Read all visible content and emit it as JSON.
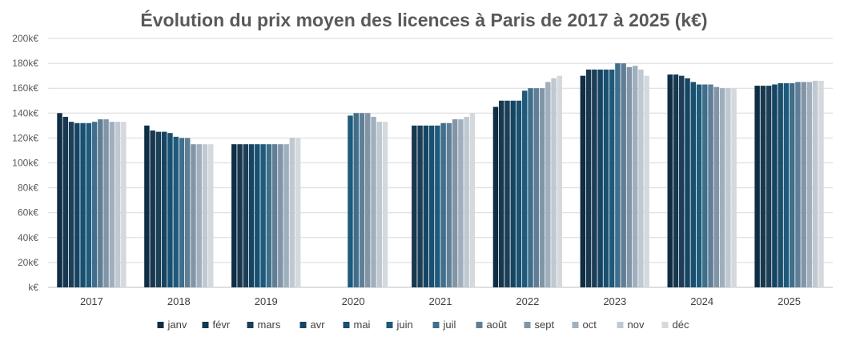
{
  "chart_data": {
    "type": "bar",
    "title": "Évolution du prix moyen des licences à Paris de 2017 à 2025 (k€)",
    "xlabel": "",
    "ylabel": "",
    "ylim": [
      0,
      200
    ],
    "y_ticks": [
      "k€",
      "20k€",
      "40k€",
      "60k€",
      "80k€",
      "100k€",
      "120k€",
      "140k€",
      "160k€",
      "180k€",
      "200k€"
    ],
    "grid": true,
    "legend": "bottom",
    "categories": [
      "2017",
      "2018",
      "2019",
      "2020",
      "2021",
      "2022",
      "2023",
      "2024",
      "2025"
    ],
    "series": [
      {
        "name": "janv",
        "color": "#0f2d44",
        "values": [
          140,
          130,
          115,
          null,
          null,
          145,
          170,
          171,
          162
        ]
      },
      {
        "name": "févr",
        "color": "#17384f",
        "values": [
          137,
          126,
          115,
          null,
          130,
          150,
          175,
          171,
          162
        ]
      },
      {
        "name": "mars",
        "color": "#1c3e56",
        "values": [
          133,
          125,
          115,
          null,
          130,
          150,
          175,
          170,
          162
        ]
      },
      {
        "name": "avr",
        "color": "#164563",
        "values": [
          132,
          125,
          115,
          null,
          130,
          150,
          175,
          168,
          163
        ]
      },
      {
        "name": "mai",
        "color": "#19506f",
        "values": [
          132,
          124,
          115,
          null,
          130,
          150,
          175,
          165,
          164
        ]
      },
      {
        "name": "juin",
        "color": "#1d5a7b",
        "values": [
          132,
          121,
          115,
          138,
          130,
          158,
          175,
          163,
          164
        ]
      },
      {
        "name": "juil",
        "color": "#3f6f8b",
        "values": [
          133,
          120,
          115,
          140,
          132,
          160,
          180,
          163,
          164
        ]
      },
      {
        "name": "août",
        "color": "#607f96",
        "values": [
          135,
          120,
          115,
          140,
          132,
          160,
          180,
          163,
          165
        ]
      },
      {
        "name": "sept",
        "color": "#8195a7",
        "values": [
          135,
          115,
          115,
          140,
          135,
          160,
          177,
          161,
          165
        ]
      },
      {
        "name": "oct",
        "color": "#a0afbd",
        "values": [
          133,
          115,
          115,
          137,
          135,
          165,
          178,
          160,
          165
        ]
      },
      {
        "name": "nov",
        "color": "#c0c8d1",
        "values": [
          133,
          115,
          120,
          133,
          137,
          168,
          175,
          160,
          166
        ]
      },
      {
        "name": "déc",
        "color": "#d4d9de",
        "values": [
          133,
          115,
          120,
          133,
          140,
          170,
          170,
          160,
          166
        ]
      }
    ]
  }
}
